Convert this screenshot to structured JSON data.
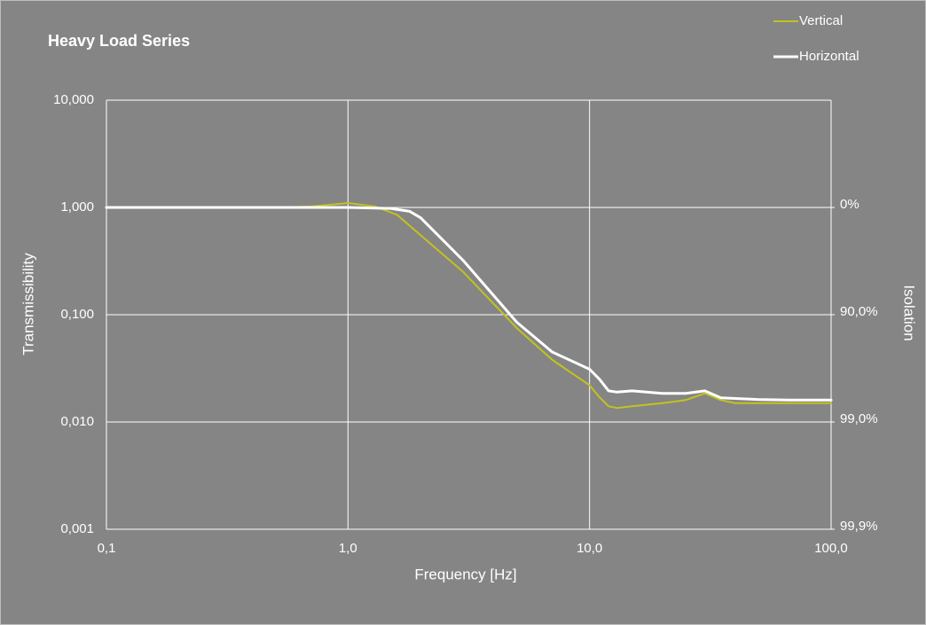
{
  "chart_data": {
    "type": "line",
    "title": "Heavy Load Series",
    "x_label": "Frequency  [Hz]",
    "y_label": "Transmissibility",
    "y2_label": "Isolation",
    "x_scale": "log",
    "y_scale": "log",
    "y2_scale": "isolation",
    "grid": true,
    "legend": "top-right",
    "xlim": [
      0.1,
      100
    ],
    "xticks": [
      {
        "value": 0.1,
        "label": "0,1"
      },
      {
        "value": 1,
        "label": "1,0"
      },
      {
        "value": 10,
        "label": "10,0"
      },
      {
        "value": 100,
        "label": "100,0"
      }
    ],
    "ylim": [
      0.001,
      10
    ],
    "yticks": [
      {
        "value": 0.001,
        "label": "0,001"
      },
      {
        "value": 0.01,
        "label": "0,010"
      },
      {
        "value": 0.1,
        "label": "0,100"
      },
      {
        "value": 1,
        "label": "1,000"
      },
      {
        "value": 10,
        "label": "10,000"
      }
    ],
    "y2lim": [
      99.9,
      -900
    ],
    "y2ticks": [
      {
        "value": 0,
        "label": "0%"
      },
      {
        "value": 90,
        "label": "90,0%"
      },
      {
        "value": 99,
        "label": "99,0%"
      },
      {
        "value": 99.9,
        "label": "99,9%"
      }
    ],
    "series": [
      {
        "name": "Vertical",
        "color": "#c2c31e",
        "width": 2,
        "x": [
          0.1,
          0.2,
          0.5,
          0.7,
          1.0,
          1.3,
          1.6,
          2,
          3,
          5,
          7,
          10,
          11,
          12,
          13,
          15,
          20,
          25,
          30,
          35,
          40,
          50,
          70,
          100
        ],
        "values": [
          1,
          1,
          1,
          1.02,
          1.1,
          1.02,
          0.85,
          0.55,
          0.25,
          0.075,
          0.038,
          0.022,
          0.017,
          0.014,
          0.0135,
          0.014,
          0.015,
          0.016,
          0.0185,
          0.016,
          0.015,
          0.015,
          0.015,
          0.015
        ]
      },
      {
        "name": "Horizontal",
        "color": "#ffffff",
        "width": 3,
        "x": [
          0.1,
          0.2,
          0.5,
          1.0,
          1.5,
          1.8,
          2,
          3,
          5,
          7,
          10,
          11,
          12,
          13,
          15,
          20,
          25,
          30,
          35,
          50,
          70,
          100
        ],
        "values": [
          1,
          1,
          1,
          1,
          0.98,
          0.92,
          0.8,
          0.32,
          0.085,
          0.045,
          0.031,
          0.025,
          0.0195,
          0.019,
          0.0195,
          0.0185,
          0.0185,
          0.0195,
          0.0168,
          0.0162,
          0.016,
          0.016
        ]
      }
    ]
  }
}
